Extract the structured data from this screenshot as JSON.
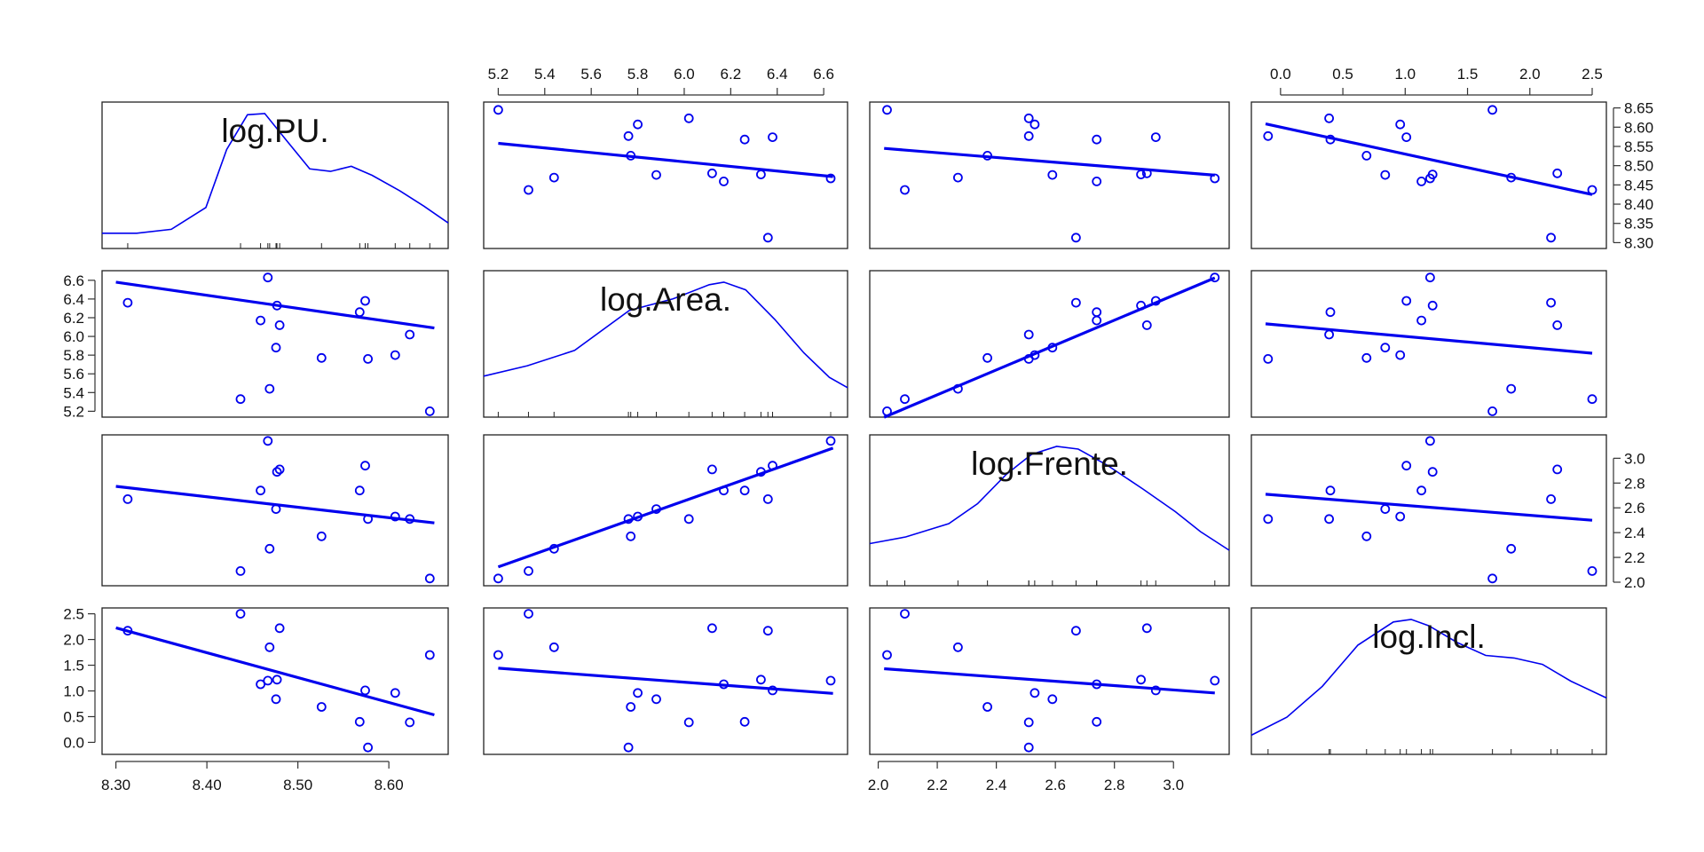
{
  "chart_data": {
    "type": "scatter",
    "variables": [
      "log.PU.",
      "log.Area.",
      "log.Frente.",
      "log.Incl."
    ],
    "axis_ranges": {
      "log.PU.": [
        8.3,
        8.65
      ],
      "log.Area.": [
        5.2,
        6.64
      ],
      "log.Frente.": [
        2.02,
        3.14
      ],
      "log.Incl.": [
        -0.12,
        2.5
      ]
    },
    "axis_ticks": {
      "log.PU.": [
        "8.30",
        "8.35",
        "8.40",
        "8.45",
        "8.50",
        "8.55",
        "8.60",
        "8.65"
      ],
      "log.PU._bottom": [
        "8.30",
        "8.40",
        "8.50",
        "8.60"
      ],
      "log.Area.": [
        "5.2",
        "5.4",
        "5.6",
        "5.8",
        "6.0",
        "6.2",
        "6.4",
        "6.6"
      ],
      "log.Frente.": [
        "2.0",
        "2.2",
        "2.4",
        "2.6",
        "2.8",
        "3.0"
      ],
      "log.Frente._bottom": [
        "2.0",
        "2.2",
        "2.4",
        "2.6",
        "2.8",
        "3.0"
      ],
      "log.Incl.": [
        "0.0",
        "0.5",
        "1.0",
        "1.5",
        "2.0",
        "2.5"
      ]
    },
    "observations": [
      {
        "log.PU.": 8.645,
        "log.Area.": 5.2,
        "log.Frente.": 2.03,
        "log.Incl.": 1.7
      },
      {
        "log.PU.": 8.437,
        "log.Area.": 5.33,
        "log.Frente.": 2.09,
        "log.Incl.": 2.5
      },
      {
        "log.PU.": 8.469,
        "log.Area.": 5.44,
        "log.Frente.": 2.27,
        "log.Incl.": 1.85
      },
      {
        "log.PU.": 8.577,
        "log.Area.": 5.76,
        "log.Frente.": 2.51,
        "log.Incl.": -0.1
      },
      {
        "log.PU.": 8.526,
        "log.Area.": 5.77,
        "log.Frente.": 2.37,
        "log.Incl.": 0.69
      },
      {
        "log.PU.": 8.607,
        "log.Area.": 5.8,
        "log.Frente.": 2.53,
        "log.Incl.": 0.96
      },
      {
        "log.PU.": 8.476,
        "log.Area.": 5.88,
        "log.Frente.": 2.59,
        "log.Incl.": 0.84
      },
      {
        "log.PU.": 8.623,
        "log.Area.": 6.02,
        "log.Frente.": 2.51,
        "log.Incl.": 0.39
      },
      {
        "log.PU.": 8.48,
        "log.Area.": 6.12,
        "log.Frente.": 2.91,
        "log.Incl.": 2.22
      },
      {
        "log.PU.": 8.459,
        "log.Area.": 6.17,
        "log.Frente.": 2.74,
        "log.Incl.": 1.13
      },
      {
        "log.PU.": 8.568,
        "log.Area.": 6.26,
        "log.Frente.": 2.74,
        "log.Incl.": 0.4
      },
      {
        "log.PU.": 8.477,
        "log.Area.": 6.33,
        "log.Frente.": 2.89,
        "log.Incl.": 1.22
      },
      {
        "log.PU.": 8.313,
        "log.Area.": 6.36,
        "log.Frente.": 2.67,
        "log.Incl.": 2.17
      },
      {
        "log.PU.": 8.574,
        "log.Area.": 6.38,
        "log.Frente.": 2.94,
        "log.Incl.": 1.01
      },
      {
        "log.PU.": 8.467,
        "log.Area.": 6.63,
        "log.Frente.": 3.14,
        "log.Incl.": 1.2
      }
    ],
    "fit_lines": {
      "log.Area.|log.PU.": {
        "intercept": 18.2,
        "slope": -1.4
      },
      "log.Frente.|log.PU.": {
        "intercept": 9.77,
        "slope": -0.843
      },
      "log.Incl.|log.PU.": {
        "intercept": 42.4,
        "slope": -4.84
      },
      "log.PU.|log.Area.": {
        "intercept": 8.87,
        "slope": -0.06
      },
      "log.Frente.|log.Area.": {
        "intercept": -1.34,
        "slope": 0.666
      },
      "log.Incl.|log.Area.": {
        "intercept": 3.21,
        "slope": -0.34
      },
      "log.PU.|log.Frente.": {
        "intercept": 8.67,
        "slope": -0.062
      },
      "log.Area.|log.Frente.": {
        "intercept": 2.45,
        "slope": 1.33
      },
      "log.Incl.|log.Frente.": {
        "intercept": 2.28,
        "slope": -0.42
      },
      "log.PU.|log.Incl.": {
        "intercept": 8.6,
        "slope": -0.07
      },
      "log.Area.|log.Incl.": {
        "intercept": 6.12,
        "slope": -0.12
      },
      "log.Frente.|log.Incl.": {
        "intercept": 2.7,
        "slope": -0.08
      }
    },
    "density_curves": {
      "log.PU.": [
        [
          0,
          0.05
        ],
        [
          0.1,
          0.05
        ],
        [
          0.2,
          0.08
        ],
        [
          0.3,
          0.25
        ],
        [
          0.36,
          0.7
        ],
        [
          0.42,
          0.97
        ],
        [
          0.47,
          0.98
        ],
        [
          0.53,
          0.78
        ],
        [
          0.6,
          0.55
        ],
        [
          0.66,
          0.53
        ],
        [
          0.72,
          0.57
        ],
        [
          0.78,
          0.5
        ],
        [
          0.86,
          0.38
        ],
        [
          0.93,
          0.26
        ],
        [
          1,
          0.13
        ]
      ],
      "log.Area.": [
        [
          0,
          0.25
        ],
        [
          0.12,
          0.33
        ],
        [
          0.25,
          0.45
        ],
        [
          0.4,
          0.76
        ],
        [
          0.52,
          0.85
        ],
        [
          0.62,
          0.96
        ],
        [
          0.66,
          0.98
        ],
        [
          0.72,
          0.92
        ],
        [
          0.8,
          0.69
        ],
        [
          0.88,
          0.43
        ],
        [
          0.95,
          0.24
        ],
        [
          1,
          0.16
        ]
      ],
      "log.Frente.": [
        [
          0,
          0.25
        ],
        [
          0.1,
          0.3
        ],
        [
          0.22,
          0.4
        ],
        [
          0.3,
          0.55
        ],
        [
          0.38,
          0.77
        ],
        [
          0.45,
          0.92
        ],
        [
          0.52,
          0.98
        ],
        [
          0.58,
          0.96
        ],
        [
          0.66,
          0.84
        ],
        [
          0.76,
          0.66
        ],
        [
          0.85,
          0.49
        ],
        [
          0.92,
          0.34
        ],
        [
          1,
          0.2
        ]
      ],
      "log.Incl.": [
        [
          0,
          0.08
        ],
        [
          0.1,
          0.22
        ],
        [
          0.2,
          0.46
        ],
        [
          0.3,
          0.78
        ],
        [
          0.4,
          0.96
        ],
        [
          0.45,
          0.98
        ],
        [
          0.5,
          0.93
        ],
        [
          0.58,
          0.8
        ],
        [
          0.66,
          0.7
        ],
        [
          0.74,
          0.68
        ],
        [
          0.82,
          0.63
        ],
        [
          0.9,
          0.5
        ],
        [
          1,
          0.37
        ]
      ]
    },
    "grid": false,
    "legend": "none",
    "xlabel": "",
    "ylabel": "",
    "title": ""
  }
}
